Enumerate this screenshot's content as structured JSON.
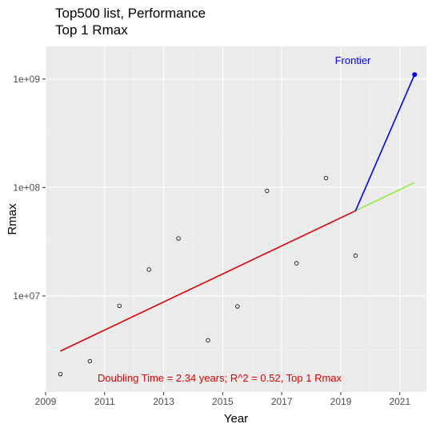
{
  "chart_data": {
    "type": "scatter",
    "title": "Top500 list, Performance",
    "subtitle": "Top 1 Rmax",
    "xlabel": "Year",
    "ylabel": "Rmax",
    "x_scale": "linear",
    "y_scale": "log10",
    "xlim": [
      2009,
      2021.9
    ],
    "ylim": [
      1300000,
      2000000000
    ],
    "x_ticks": [
      2009,
      2011,
      2013,
      2015,
      2017,
      2019,
      2021
    ],
    "x_tick_labels": [
      "2009",
      "2011",
      "2013",
      "2015",
      "2017",
      "2019",
      "2021"
    ],
    "y_ticks": [
      10000000,
      100000000,
      1000000000
    ],
    "y_tick_labels": [
      "1e+07",
      "1e+08",
      "1e+09"
    ],
    "grid": true,
    "background": "#ebebeb",
    "points": [
      {
        "x": 2009.5,
        "y": 1900000
      },
      {
        "x": 2010.5,
        "y": 2500000
      },
      {
        "x": 2011.5,
        "y": 8100000
      },
      {
        "x": 2012.5,
        "y": 17500000
      },
      {
        "x": 2013.5,
        "y": 33900000
      },
      {
        "x": 2014.5,
        "y": 3900000
      },
      {
        "x": 2015.5,
        "y": 8000000
      },
      {
        "x": 2016.5,
        "y": 93000000
      },
      {
        "x": 2017.5,
        "y": 20000000
      },
      {
        "x": 2018.5,
        "y": 122000000
      },
      {
        "x": 2019.5,
        "y": 23500000
      }
    ],
    "highlight_point": {
      "x": 2021.5,
      "y": 1100000000,
      "label": "Frontier",
      "color": "#0000ff"
    },
    "lines": [
      {
        "role": "fit",
        "color": "#e00000",
        "points": [
          {
            "x": 2009.5,
            "y": 3100000
          },
          {
            "x": 2019.5,
            "y": 61000000
          }
        ]
      },
      {
        "role": "extrapolation",
        "color": "#90ee40",
        "points": [
          {
            "x": 2019.5,
            "y": 61000000
          },
          {
            "x": 2021.5,
            "y": 111000000
          }
        ]
      },
      {
        "role": "to-frontier",
        "color": "#0000ff",
        "points": [
          {
            "x": 2019.5,
            "y": 61000000
          },
          {
            "x": 2021.5,
            "y": 1100000000
          }
        ]
      }
    ],
    "annotation": {
      "text": "Doubling Time = 2.34 years; R^2 = 0.52, Top 1 Rmax",
      "color": "#e00000"
    }
  }
}
